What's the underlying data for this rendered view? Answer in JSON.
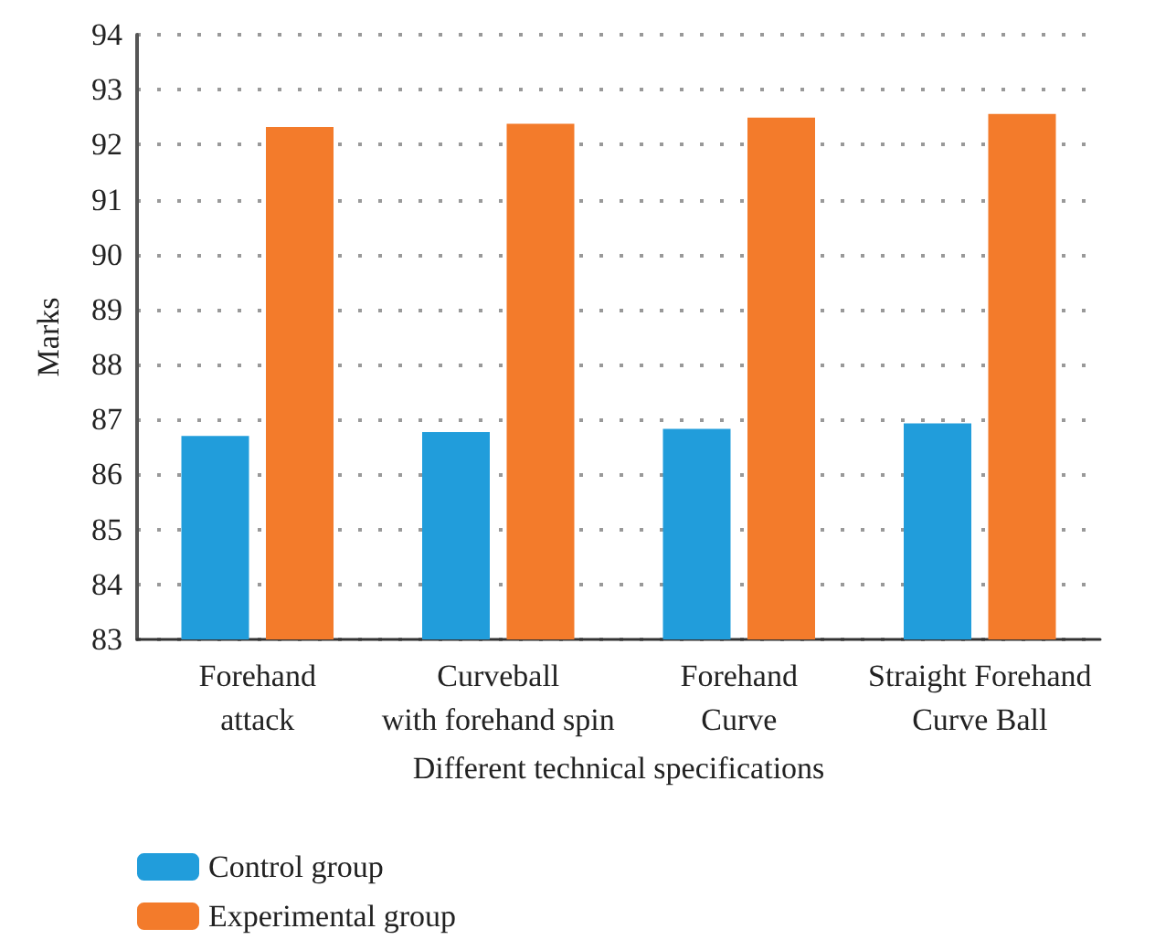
{
  "chart_data": {
    "type": "bar",
    "xlabel": "Different technical specifications",
    "ylabel": "Marks",
    "categories": [
      "Forehand\nattack",
      "Curveball\nwith forehand spin",
      "Forehand\nCurve",
      "Straight Forehand\nCurve Ball"
    ],
    "series": [
      {
        "name": "Control group",
        "color": "#219ddb",
        "values": [
          86.7,
          86.77,
          86.83,
          86.93
        ]
      },
      {
        "name": "Experimental group",
        "color": "#f37b2b",
        "values": [
          92.32,
          92.38,
          92.49,
          92.56
        ]
      }
    ],
    "ylim": [
      83,
      94
    ],
    "yticks": [
      83,
      84,
      85,
      86,
      87,
      88,
      89,
      90,
      91,
      92,
      93,
      94
    ],
    "grid": "y",
    "legend": "bottom left"
  }
}
